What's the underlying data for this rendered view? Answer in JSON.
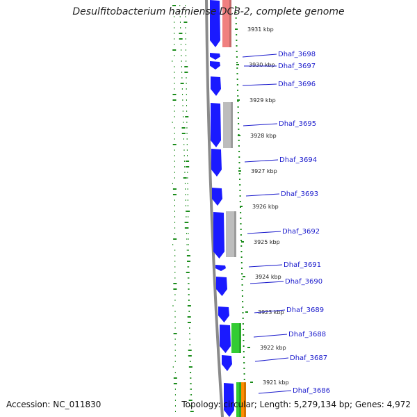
{
  "title": "Desulfitobacterium hafniense DCB-2, complete genome",
  "footer": {
    "accession": "Accession: NC_011830",
    "summary": "Topology: circular; Length: 5,279,134 bp; Genes: 4,972"
  },
  "colors": {
    "gene_strand": "#1a1aff",
    "gene_label": "#1a1acc",
    "backbone": "#888888",
    "gc_ticks": "#1a8c1a",
    "cog_pink": "#f08080",
    "cog_gray": "#bdbdbd",
    "cog_green": "#33cc33",
    "cog_orange": "#ff8c00"
  },
  "kbp_markers": [
    {
      "label": "3931 kbp",
      "pos_kbp": 3931
    },
    {
      "label": "3930 kbp",
      "pos_kbp": 3930
    },
    {
      "label": "3929 kbp",
      "pos_kbp": 3929
    },
    {
      "label": "3928 kbp",
      "pos_kbp": 3928
    },
    {
      "label": "3927 kbp",
      "pos_kbp": 3927
    },
    {
      "label": "3926 kbp",
      "pos_kbp": 3926
    },
    {
      "label": "3925 kbp",
      "pos_kbp": 3925
    },
    {
      "label": "3924 kbp",
      "pos_kbp": 3924
    },
    {
      "label": "3923 kbp",
      "pos_kbp": 3923
    },
    {
      "label": "3922 kbp",
      "pos_kbp": 3922
    },
    {
      "label": "3921 kbp",
      "pos_kbp": 3921
    }
  ],
  "genes": [
    {
      "id": "Dhaf_3698",
      "label": "Dhaf_3698",
      "cog": "none"
    },
    {
      "id": "Dhaf_3697",
      "label": "Dhaf_3697",
      "cog": "none"
    },
    {
      "id": "Dhaf_3696",
      "label": "Dhaf_3696",
      "cog": "none"
    },
    {
      "id": "Dhaf_3695",
      "label": "Dhaf_3695",
      "cog": "gray"
    },
    {
      "id": "Dhaf_3694",
      "label": "Dhaf_3694",
      "cog": "none"
    },
    {
      "id": "Dhaf_3693",
      "label": "Dhaf_3693",
      "cog": "none"
    },
    {
      "id": "Dhaf_3692",
      "label": "Dhaf_3692",
      "cog": "gray"
    },
    {
      "id": "Dhaf_3691",
      "label": "Dhaf_3691",
      "cog": "none"
    },
    {
      "id": "Dhaf_3690",
      "label": "Dhaf_3690",
      "cog": "none"
    },
    {
      "id": "Dhaf_3689",
      "label": "Dhaf_3689",
      "cog": "none"
    },
    {
      "id": "Dhaf_3688",
      "label": "Dhaf_3688",
      "cog": "green"
    },
    {
      "id": "Dhaf_3687",
      "label": "Dhaf_3687",
      "cog": "none"
    },
    {
      "id": "Dhaf_3686",
      "label": "Dhaf_3686",
      "cog": "green-orange"
    }
  ]
}
